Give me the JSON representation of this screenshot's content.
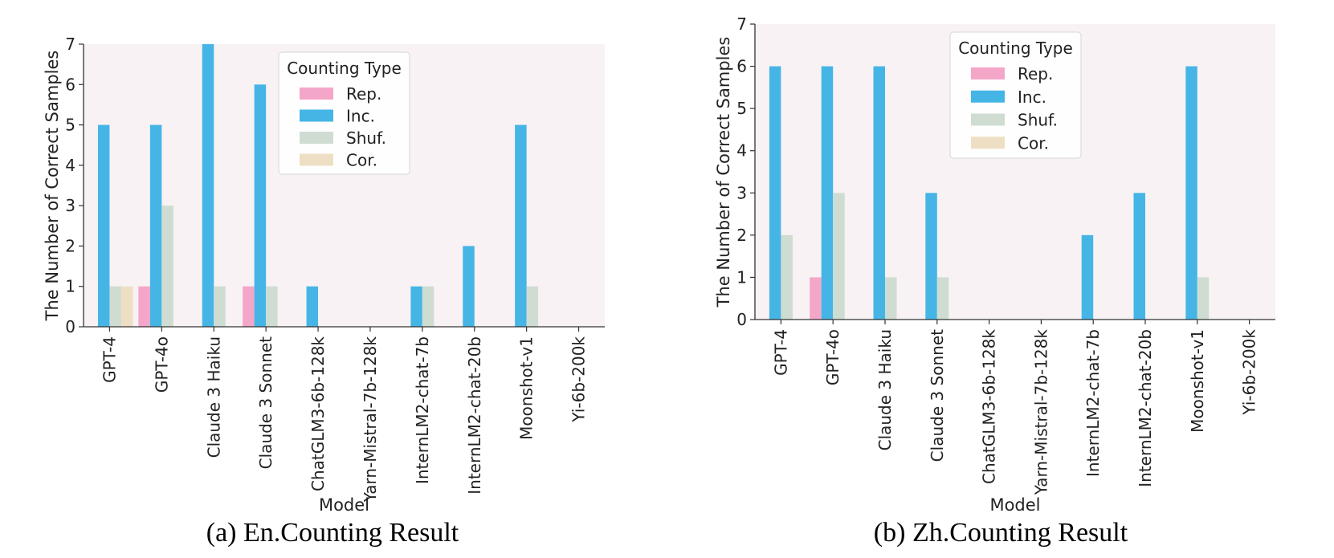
{
  "colors": {
    "Rep.": "#f4a6c8",
    "Inc.": "#45b5e6",
    "Shuf.": "#cfdcd2",
    "Cor.": "#eedfc4",
    "plot_bg": "#f8f2f4"
  },
  "chart_data": [
    {
      "type": "bar",
      "title": "",
      "xlabel": "Model",
      "ylabel": "The Number of Correct Samples",
      "ylim": [
        0,
        7
      ],
      "yticks": [
        0,
        1,
        2,
        3,
        4,
        5,
        6,
        7
      ],
      "legend_title": "Counting Type",
      "legend_position": "top-center",
      "grid": false,
      "caption": "(a) En.Counting Result",
      "categories": [
        "GPT-4",
        "GPT-4o",
        "Claude 3 Haiku",
        "Claude 3 Sonnet",
        "ChatGLM3-6b-128k",
        "Yarn-Mistral-7b-128k",
        "InternLM2-chat-7b",
        "InternLM2-chat-20b",
        "Moonshot-v1",
        "Yi-6b-200k"
      ],
      "series": [
        {
          "name": "Rep.",
          "values": [
            0,
            1,
            0,
            1,
            0,
            0,
            0,
            0,
            0,
            0
          ]
        },
        {
          "name": "Inc.",
          "values": [
            5,
            5,
            7,
            6,
            1,
            0,
            1,
            2,
            5,
            0
          ]
        },
        {
          "name": "Shuf.",
          "values": [
            1,
            3,
            1,
            1,
            0,
            0,
            1,
            0,
            1,
            0
          ]
        },
        {
          "name": "Cor.",
          "values": [
            1,
            0,
            0,
            0,
            0,
            0,
            0,
            0,
            0,
            0
          ]
        }
      ]
    },
    {
      "type": "bar",
      "title": "",
      "xlabel": "Model",
      "ylabel": "The Number of Correct Samples",
      "ylim": [
        0,
        7
      ],
      "yticks": [
        0,
        1,
        2,
        3,
        4,
        5,
        6,
        7
      ],
      "legend_title": "Counting Type",
      "legend_position": "top-center",
      "grid": false,
      "caption": "(b) Zh.Counting Result",
      "categories": [
        "GPT-4",
        "GPT-4o",
        "Claude 3 Haiku",
        "Claude 3 Sonnet",
        "ChatGLM3-6b-128k",
        "Yarn-Mistral-7b-128k",
        "InternLM2-chat-7b",
        "InternLM2-chat-20b",
        "Moonshot-v1",
        "Yi-6b-200k"
      ],
      "series": [
        {
          "name": "Rep.",
          "values": [
            0,
            1,
            0,
            0,
            0,
            0,
            0,
            0,
            0,
            0
          ]
        },
        {
          "name": "Inc.",
          "values": [
            6,
            6,
            6,
            3,
            0,
            0,
            2,
            3,
            6,
            0
          ]
        },
        {
          "name": "Shuf.",
          "values": [
            2,
            3,
            1,
            1,
            0,
            0,
            0,
            0,
            1,
            0
          ]
        },
        {
          "name": "Cor.",
          "values": [
            0,
            0,
            0,
            0,
            0,
            0,
            0,
            0,
            0,
            0
          ]
        }
      ]
    }
  ]
}
